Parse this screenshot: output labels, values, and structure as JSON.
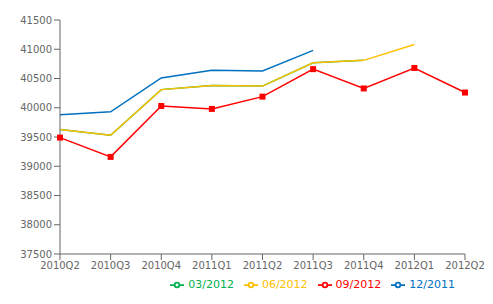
{
  "chart_data": {
    "type": "line",
    "categories": [
      "2010Q2",
      "2010Q3",
      "2010Q4",
      "2011Q1",
      "2011Q2",
      "2011Q3",
      "2011Q4",
      "2012Q1",
      "2012Q2"
    ],
    "series": [
      {
        "name": "12/2011",
        "color": "#0070c0",
        "values": [
          39880,
          39930,
          40510,
          40640,
          40630,
          40980,
          null,
          null,
          null
        ]
      },
      {
        "name": "03/2012",
        "color": "#00b050",
        "values": [
          39630,
          39530,
          40310,
          40380,
          40370,
          40770,
          40810,
          null,
          null
        ]
      },
      {
        "name": "06/2012",
        "color": "#ffc000",
        "values": [
          39630,
          39530,
          40310,
          40380,
          40370,
          40770,
          40810,
          41080,
          null
        ]
      },
      {
        "name": "09/2012",
        "color": "#ff0000",
        "marker": "square",
        "values": [
          39490,
          39160,
          40030,
          39980,
          40190,
          40660,
          40330,
          40680,
          40260
        ]
      }
    ],
    "ylim": [
      37500,
      41500
    ],
    "yticks": [
      37500,
      38000,
      38500,
      39000,
      39500,
      40000,
      40500,
      41000,
      41500
    ],
    "grid": false,
    "legend": "lower right"
  }
}
